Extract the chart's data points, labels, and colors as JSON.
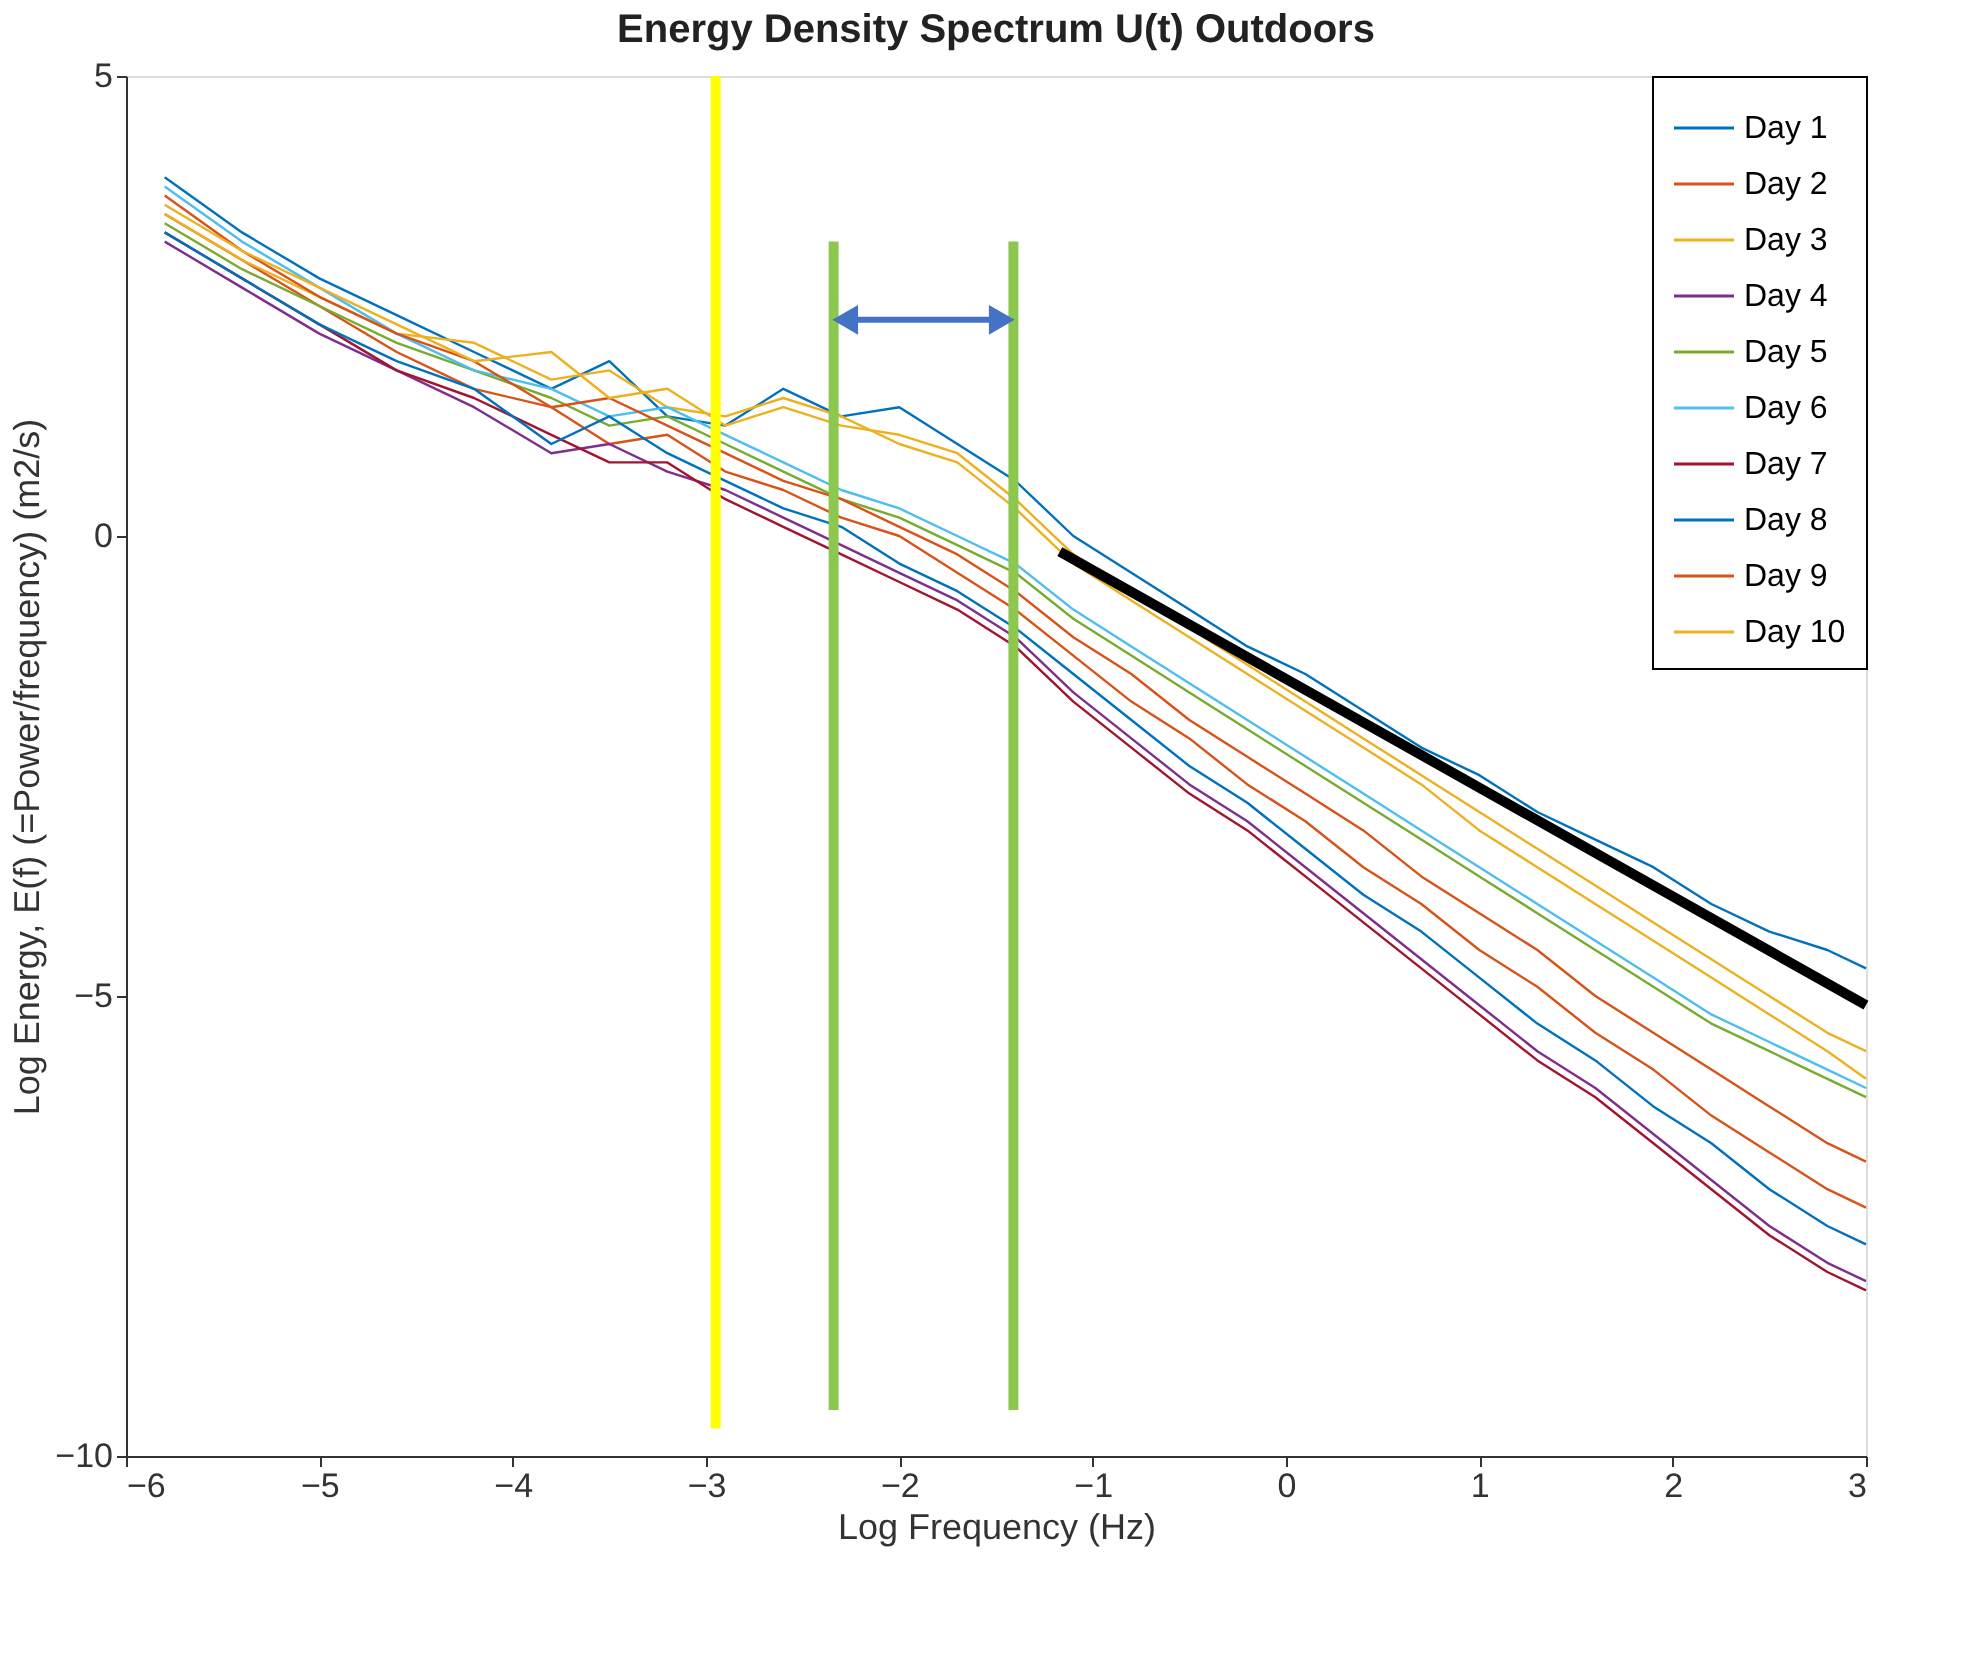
{
  "chart_data": {
    "type": "line",
    "title": "Energy Density Spectrum U(t) Outdoors",
    "xlabel": "Log Frequency (Hz)",
    "ylabel": "Log Energy, E(f) (=Power/frequency) (m2/s)",
    "xlim": [
      -6,
      3
    ],
    "ylim": [
      -10,
      5
    ],
    "xticks": [
      -6,
      -5,
      -4,
      -3,
      -2,
      -1,
      0,
      1,
      2,
      3
    ],
    "yticks": [
      -10,
      -5,
      0,
      5
    ],
    "grid": false,
    "legend": "top right",
    "line_style": "solid",
    "x": [
      -5.8,
      -5.4,
      -5.0,
      -4.6,
      -4.2,
      -3.8,
      -3.5,
      -3.2,
      -2.9,
      -2.6,
      -2.3,
      -2.0,
      -1.7,
      -1.4,
      -1.1,
      -0.8,
      -0.5,
      -0.2,
      0.1,
      0.4,
      0.7,
      1.0,
      1.3,
      1.6,
      1.9,
      2.2,
      2.5,
      2.8,
      3.0
    ],
    "series": [
      {
        "name": "Day 1",
        "color": "#0072bd",
        "values": [
          3.9,
          3.3,
          2.8,
          2.4,
          2.0,
          1.6,
          1.9,
          1.3,
          1.2,
          1.6,
          1.3,
          1.4,
          1.0,
          0.6,
          0.0,
          -0.4,
          -0.8,
          -1.2,
          -1.5,
          -1.9,
          -2.3,
          -2.6,
          -3.0,
          -3.3,
          -3.6,
          -4.0,
          -4.3,
          -4.5,
          -4.7
        ]
      },
      {
        "name": "Day 2",
        "color": "#d95319",
        "values": [
          3.5,
          3.0,
          2.5,
          2.0,
          1.6,
          1.4,
          1.0,
          1.1,
          0.7,
          0.5,
          0.2,
          0.0,
          -0.4,
          -0.8,
          -1.3,
          -1.8,
          -2.2,
          -2.7,
          -3.1,
          -3.6,
          -4.0,
          -4.5,
          -4.9,
          -5.4,
          -5.8,
          -6.3,
          -6.7,
          -7.1,
          -7.3
        ]
      },
      {
        "name": "Day 3",
        "color": "#edb120",
        "values": [
          3.5,
          3.0,
          2.6,
          2.2,
          2.1,
          1.7,
          1.8,
          1.4,
          1.3,
          1.5,
          1.3,
          1.0,
          0.8,
          0.3,
          -0.3,
          -0.7,
          -1.1,
          -1.5,
          -1.9,
          -2.3,
          -2.7,
          -3.2,
          -3.6,
          -4.0,
          -4.4,
          -4.8,
          -5.2,
          -5.6,
          -5.9
        ]
      },
      {
        "name": "Day 4",
        "color": "#7e2f8e",
        "values": [
          3.2,
          2.7,
          2.2,
          1.8,
          1.4,
          0.9,
          1.0,
          0.7,
          0.5,
          0.2,
          -0.1,
          -0.4,
          -0.7,
          -1.1,
          -1.7,
          -2.2,
          -2.7,
          -3.1,
          -3.6,
          -4.1,
          -4.6,
          -5.1,
          -5.6,
          -6.0,
          -6.5,
          -7.0,
          -7.5,
          -7.9,
          -8.1
        ]
      },
      {
        "name": "Day 5",
        "color": "#77ac30",
        "values": [
          3.4,
          2.9,
          2.5,
          2.1,
          1.8,
          1.5,
          1.2,
          1.3,
          1.0,
          0.7,
          0.4,
          0.2,
          -0.1,
          -0.4,
          -0.9,
          -1.3,
          -1.7,
          -2.1,
          -2.5,
          -2.9,
          -3.3,
          -3.7,
          -4.1,
          -4.5,
          -4.9,
          -5.3,
          -5.6,
          -5.9,
          -6.1
        ]
      },
      {
        "name": "Day 6",
        "color": "#4dbeee",
        "values": [
          3.8,
          3.2,
          2.7,
          2.2,
          1.8,
          1.6,
          1.3,
          1.4,
          1.1,
          0.8,
          0.5,
          0.3,
          0.0,
          -0.3,
          -0.8,
          -1.2,
          -1.6,
          -2.0,
          -2.4,
          -2.8,
          -3.2,
          -3.6,
          -4.0,
          -4.4,
          -4.8,
          -5.2,
          -5.5,
          -5.8,
          -6.0
        ]
      },
      {
        "name": "Day 7",
        "color": "#a2142f",
        "values": [
          3.3,
          2.8,
          2.3,
          1.8,
          1.5,
          1.1,
          0.8,
          0.8,
          0.4,
          0.1,
          -0.2,
          -0.5,
          -0.8,
          -1.2,
          -1.8,
          -2.3,
          -2.8,
          -3.2,
          -3.7,
          -4.2,
          -4.7,
          -5.2,
          -5.7,
          -6.1,
          -6.6,
          -7.1,
          -7.6,
          -8.0,
          -8.2
        ]
      },
      {
        "name": "Day 8",
        "color": "#0072bd",
        "values": [
          3.3,
          2.8,
          2.3,
          1.9,
          1.6,
          1.0,
          1.3,
          0.9,
          0.6,
          0.3,
          0.1,
          -0.3,
          -0.6,
          -1.0,
          -1.5,
          -2.0,
          -2.5,
          -2.9,
          -3.4,
          -3.9,
          -4.3,
          -4.8,
          -5.3,
          -5.7,
          -6.2,
          -6.6,
          -7.1,
          -7.5,
          -7.7
        ]
      },
      {
        "name": "Day 9",
        "color": "#d95319",
        "values": [
          3.7,
          3.1,
          2.6,
          2.2,
          1.9,
          1.4,
          1.5,
          1.2,
          0.9,
          0.6,
          0.4,
          0.1,
          -0.2,
          -0.6,
          -1.1,
          -1.5,
          -2.0,
          -2.4,
          -2.8,
          -3.2,
          -3.7,
          -4.1,
          -4.5,
          -5.0,
          -5.4,
          -5.8,
          -6.2,
          -6.6,
          -6.8
        ]
      },
      {
        "name": "Day 10",
        "color": "#edb120",
        "values": [
          3.6,
          3.1,
          2.7,
          2.3,
          1.9,
          2.0,
          1.5,
          1.6,
          1.2,
          1.4,
          1.2,
          1.1,
          0.9,
          0.4,
          -0.2,
          -0.6,
          -1.0,
          -1.4,
          -1.8,
          -2.2,
          -2.6,
          -3.0,
          -3.4,
          -3.8,
          -4.2,
          -4.6,
          -5.0,
          -5.4,
          -5.6
        ]
      },
      {
        "color": "#ffff00",
        "x": [
          -2.95,
          -2.95
        ],
        "values": [
          5,
          -9.7
        ]
      },
      {
        "color": "#8cc850",
        "x": [
          -2.34,
          -2.34
        ],
        "values": [
          3.2,
          -9.5
        ]
      },
      {
        "color": "#8cc850",
        "x": [
          -1.41,
          -1.41
        ],
        "values": [
          3.2,
          -9.5
        ]
      },
      {
        "color": "#000000",
        "x": [
          -1.17,
          3.0
        ],
        "values": [
          -0.17,
          -5.1
        ]
      },
      {
        "color": "#4472c4",
        "x": [
          -2.28,
          -1.47
        ],
        "values": [
          2.35,
          2.35
        ],
        "marker": "triangle"
      }
    ]
  }
}
